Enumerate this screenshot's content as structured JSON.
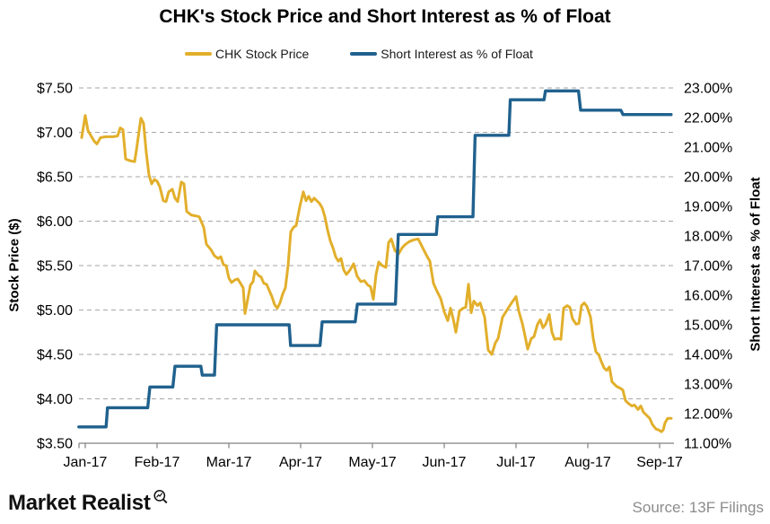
{
  "title": "CHK's Stock Price and Short Interest as % of Float",
  "legend": [
    {
      "label": "CHK Stock Price",
      "color": "#E2AF2B"
    },
    {
      "label": "Short Interest as % of Float",
      "color": "#20618E"
    }
  ],
  "footer": {
    "brand": "Market Realist",
    "source": "Source:  13F Filings"
  },
  "chart_data": {
    "type": "line",
    "title": "CHK's Stock Price and Short Interest as % of Float",
    "x_axis": {
      "tick_labels": [
        "Jan-17",
        "Feb-17",
        "Mar-17",
        "Apr-17",
        "May-17",
        "Jun-17",
        "Jul-17",
        "Aug-17",
        "Sep-17"
      ],
      "unit": "t = months after Jan-17 tick (0..8)"
    },
    "left_axis": {
      "label": "Stock Price ($)",
      "tick_labels": [
        "$7.50",
        "$7.00",
        "$6.50",
        "$6.00",
        "$5.50",
        "$5.00",
        "$4.50",
        "$4.00",
        "$3.50"
      ],
      "tick_values": [
        7.5,
        7.0,
        6.5,
        6.0,
        5.5,
        5.0,
        4.5,
        4.0,
        3.5
      ],
      "range": [
        3.5,
        7.5
      ]
    },
    "right_axis": {
      "label": "Short Interest as % of Float",
      "tick_labels": [
        "23.00%",
        "22.00%",
        "21.00%",
        "20.00%",
        "19.00%",
        "18.00%",
        "17.00%",
        "16.00%",
        "15.00%",
        "14.00%",
        "13.00%",
        "12.00%",
        "11.00%"
      ],
      "tick_values": [
        23,
        22,
        21,
        20,
        19,
        18,
        17,
        16,
        15,
        14,
        13,
        12,
        11
      ],
      "range": [
        11,
        23
      ]
    },
    "grid": {
      "dashed": true,
      "color": "#A6A6A6",
      "legend_position": "top"
    },
    "series": [
      {
        "name": "CHK Stock Price",
        "axis": "left",
        "color": "#E2AF2B",
        "width": 3,
        "points": [
          [
            -0.05,
            6.94
          ],
          [
            0,
            7.19
          ],
          [
            0.038,
            7.02
          ],
          [
            0.088,
            6.95
          ],
          [
            0.125,
            6.9
          ],
          [
            0.163,
            6.87
          ],
          [
            0.213,
            6.94
          ],
          [
            0.288,
            6.95
          ],
          [
            0.388,
            6.95
          ],
          [
            0.45,
            6.96
          ],
          [
            0.488,
            7.05
          ],
          [
            0.525,
            7.03
          ],
          [
            0.563,
            6.7
          ],
          [
            0.625,
            6.68
          ],
          [
            0.688,
            6.67
          ],
          [
            0.713,
            6.8
          ],
          [
            0.775,
            7.16
          ],
          [
            0.813,
            7.1
          ],
          [
            0.85,
            6.77
          ],
          [
            0.888,
            6.52
          ],
          [
            0.925,
            6.42
          ],
          [
            0.963,
            6.47
          ],
          [
            1,
            6.45
          ],
          [
            1.038,
            6.39
          ],
          [
            1.088,
            6.23
          ],
          [
            1.125,
            6.22
          ],
          [
            1.163,
            6.33
          ],
          [
            1.213,
            6.36
          ],
          [
            1.25,
            6.26
          ],
          [
            1.288,
            6.22
          ],
          [
            1.338,
            6.44
          ],
          [
            1.375,
            6.42
          ],
          [
            1.413,
            6.11
          ],
          [
            1.475,
            6.07
          ],
          [
            1.538,
            6.06
          ],
          [
            1.588,
            6.05
          ],
          [
            1.65,
            5.93
          ],
          [
            1.688,
            5.74
          ],
          [
            1.75,
            5.68
          ],
          [
            1.8,
            5.61
          ],
          [
            1.85,
            5.58
          ],
          [
            1.888,
            5.6
          ],
          [
            1.925,
            5.51
          ],
          [
            1.963,
            5.5
          ],
          [
            2,
            5.36
          ],
          [
            2.038,
            5.31
          ],
          [
            2.088,
            5.34
          ],
          [
            2.125,
            5.35
          ],
          [
            2.163,
            5.3
          ],
          [
            2.2,
            5.25
          ],
          [
            2.225,
            4.96
          ],
          [
            2.263,
            5.12
          ],
          [
            2.3,
            5.28
          ],
          [
            2.338,
            5.32
          ],
          [
            2.363,
            5.44
          ],
          [
            2.413,
            5.39
          ],
          [
            2.45,
            5.37
          ],
          [
            2.488,
            5.3
          ],
          [
            2.525,
            5.29
          ],
          [
            2.563,
            5.22
          ],
          [
            2.6,
            5.15
          ],
          [
            2.638,
            5.06
          ],
          [
            2.675,
            5.02
          ],
          [
            2.713,
            5.08
          ],
          [
            2.75,
            5.18
          ],
          [
            2.788,
            5.25
          ],
          [
            2.825,
            5.5
          ],
          [
            2.863,
            5.88
          ],
          [
            2.9,
            5.93
          ],
          [
            2.938,
            5.95
          ],
          [
            2.988,
            6.16
          ],
          [
            3.038,
            6.33
          ],
          [
            3.075,
            6.23
          ],
          [
            3.113,
            6.28
          ],
          [
            3.15,
            6.22
          ],
          [
            3.188,
            6.26
          ],
          [
            3.225,
            6.23
          ],
          [
            3.263,
            6.2
          ],
          [
            3.3,
            6.15
          ],
          [
            3.338,
            6.05
          ],
          [
            3.375,
            5.9
          ],
          [
            3.413,
            5.78
          ],
          [
            3.45,
            5.7
          ],
          [
            3.488,
            5.6
          ],
          [
            3.525,
            5.55
          ],
          [
            3.563,
            5.58
          ],
          [
            3.6,
            5.45
          ],
          [
            3.638,
            5.4
          ],
          [
            3.688,
            5.45
          ],
          [
            3.738,
            5.52
          ],
          [
            3.788,
            5.38
          ],
          [
            3.838,
            5.32
          ],
          [
            3.888,
            5.33
          ],
          [
            3.938,
            5.28
          ],
          [
            3.975,
            5.26
          ],
          [
            4.013,
            5.12
          ],
          [
            4.05,
            5.4
          ],
          [
            4.088,
            5.54
          ],
          [
            4.138,
            5.5
          ],
          [
            4.188,
            5.48
          ],
          [
            4.225,
            5.76
          ],
          [
            4.263,
            5.8
          ],
          [
            4.313,
            5.67
          ],
          [
            4.363,
            5.63
          ],
          [
            4.413,
            5.7
          ],
          [
            4.463,
            5.74
          ],
          [
            4.513,
            5.77
          ],
          [
            4.575,
            5.79
          ],
          [
            4.638,
            5.8
          ],
          [
            4.688,
            5.72
          ],
          [
            4.75,
            5.62
          ],
          [
            4.8,
            5.55
          ],
          [
            4.85,
            5.3
          ],
          [
            4.9,
            5.21
          ],
          [
            4.95,
            5.13
          ],
          [
            5,
            4.98
          ],
          [
            5.05,
            4.88
          ],
          [
            5.088,
            5.02
          ],
          [
            5.125,
            4.9
          ],
          [
            5.163,
            4.75
          ],
          [
            5.213,
            4.99
          ],
          [
            5.263,
            5.02
          ],
          [
            5.3,
            5.03
          ],
          [
            5.338,
            5.29
          ],
          [
            5.375,
            4.97
          ],
          [
            5.413,
            5.1
          ],
          [
            5.463,
            5.05
          ],
          [
            5.5,
            5.08
          ],
          [
            5.563,
            4.92
          ],
          [
            5.613,
            4.55
          ],
          [
            5.663,
            4.5
          ],
          [
            5.713,
            4.63
          ],
          [
            5.75,
            4.68
          ],
          [
            5.813,
            4.92
          ],
          [
            5.875,
            5
          ],
          [
            5.938,
            5.08
          ],
          [
            6,
            5.15
          ],
          [
            6.038,
            4.99
          ],
          [
            6.088,
            4.85
          ],
          [
            6.125,
            4.71
          ],
          [
            6.163,
            4.56
          ],
          [
            6.213,
            4.68
          ],
          [
            6.25,
            4.7
          ],
          [
            6.3,
            4.84
          ],
          [
            6.338,
            4.89
          ],
          [
            6.375,
            4.8
          ],
          [
            6.413,
            4.84
          ],
          [
            6.463,
            4.95
          ],
          [
            6.5,
            4.75
          ],
          [
            6.538,
            4.67
          ],
          [
            6.588,
            4.68
          ],
          [
            6.625,
            4.67
          ],
          [
            6.663,
            5.02
          ],
          [
            6.713,
            5.05
          ],
          [
            6.75,
            5.03
          ],
          [
            6.788,
            4.9
          ],
          [
            6.838,
            4.84
          ],
          [
            6.875,
            4.85
          ],
          [
            6.913,
            5.05
          ],
          [
            6.95,
            5.08
          ],
          [
            6.988,
            5.04
          ],
          [
            7.038,
            4.92
          ],
          [
            7.075,
            4.68
          ],
          [
            7.113,
            4.53
          ],
          [
            7.15,
            4.5
          ],
          [
            7.188,
            4.42
          ],
          [
            7.225,
            4.35
          ],
          [
            7.263,
            4.32
          ],
          [
            7.3,
            4.36
          ],
          [
            7.338,
            4.19
          ],
          [
            7.4,
            4.14
          ],
          [
            7.45,
            4.12
          ],
          [
            7.488,
            4.1
          ],
          [
            7.525,
            3.98
          ],
          [
            7.563,
            3.95
          ],
          [
            7.613,
            3.92
          ],
          [
            7.65,
            3.93
          ],
          [
            7.7,
            3.88
          ],
          [
            7.738,
            3.92
          ],
          [
            7.775,
            3.85
          ],
          [
            7.813,
            3.82
          ],
          [
            7.863,
            3.78
          ],
          [
            7.9,
            3.71
          ],
          [
            7.95,
            3.66
          ],
          [
            7.988,
            3.65
          ],
          [
            8.025,
            3.63
          ],
          [
            8.05,
            3.65
          ],
          [
            8.075,
            3.73
          ],
          [
            8.113,
            3.78
          ],
          [
            8.163,
            3.78
          ]
        ]
      },
      {
        "name": "Short Interest as % of Float",
        "axis": "right",
        "color": "#20618E",
        "width": 3.4,
        "points": [
          [
            -0.09,
            11.55
          ],
          [
            0.29,
            11.55
          ],
          [
            0.31,
            12.2
          ],
          [
            0.87,
            12.2
          ],
          [
            0.9,
            12.9
          ],
          [
            1.22,
            12.9
          ],
          [
            1.25,
            13.6
          ],
          [
            1.61,
            13.6
          ],
          [
            1.63,
            13.3
          ],
          [
            1.8,
            13.3
          ],
          [
            1.83,
            15.0
          ],
          [
            2.84,
            15.0
          ],
          [
            2.86,
            14.3
          ],
          [
            3.27,
            14.3
          ],
          [
            3.3,
            15.1
          ],
          [
            3.76,
            15.1
          ],
          [
            3.79,
            15.7
          ],
          [
            4.32,
            15.7
          ],
          [
            4.36,
            18.05
          ],
          [
            4.89,
            18.05
          ],
          [
            4.91,
            18.65
          ],
          [
            5.4,
            18.65
          ],
          [
            5.43,
            21.4
          ],
          [
            5.9,
            21.4
          ],
          [
            5.92,
            22.6
          ],
          [
            6.39,
            22.6
          ],
          [
            6.41,
            22.9
          ],
          [
            6.87,
            22.9
          ],
          [
            6.9,
            22.25
          ],
          [
            7.46,
            22.25
          ],
          [
            7.49,
            22.1
          ],
          [
            8.16,
            22.1
          ]
        ]
      }
    ]
  }
}
